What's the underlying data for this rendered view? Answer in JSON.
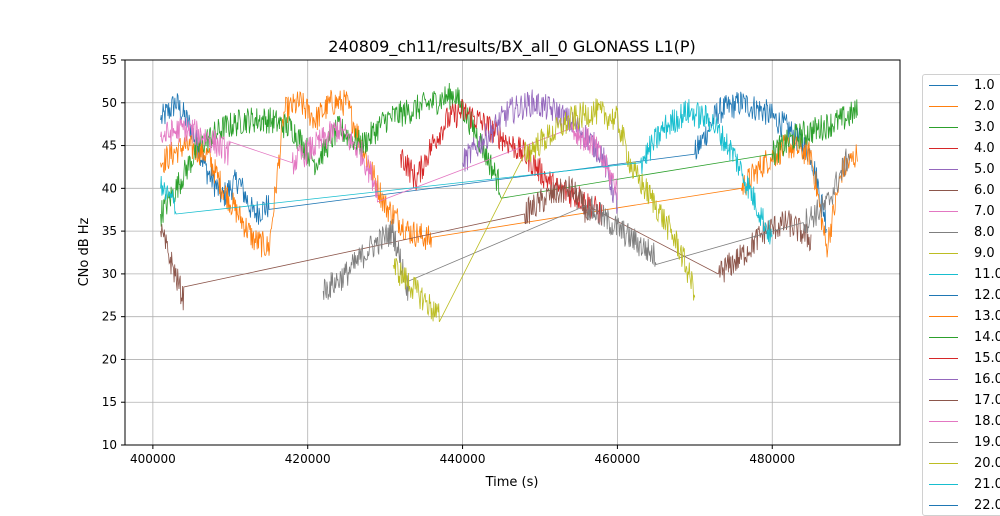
{
  "chart_data": {
    "type": "line",
    "title": "240809_ch11/results/BX_all_0 GLONASS L1(P)",
    "xlabel": "Time (s)",
    "ylabel": "CNo dB Hz",
    "xlim": [
      396400,
      496500
    ],
    "ylim": [
      10,
      55
    ],
    "xticks": [
      400000,
      420000,
      440000,
      460000,
      480000
    ],
    "xtick_labels": [
      "400000",
      "420000",
      "440000",
      "460000",
      "480000"
    ],
    "yticks": [
      10,
      15,
      20,
      25,
      30,
      35,
      40,
      45,
      50,
      55
    ],
    "ytick_labels": [
      "10",
      "15",
      "20",
      "25",
      "30",
      "35",
      "40",
      "45",
      "50",
      "55"
    ],
    "grid": true,
    "legend_position": "right-outside",
    "series": [
      {
        "name": "1.0",
        "color": "#1f77b4",
        "points": [
          [
            401000,
            48
          ],
          [
            403000,
            50
          ],
          [
            405000,
            47
          ],
          [
            407000,
            42
          ],
          [
            409000,
            39
          ],
          [
            411000,
            41
          ],
          [
            413000,
            37
          ],
          [
            415000,
            38
          ],
          [
            470000,
            44
          ],
          [
            473000,
            49
          ],
          [
            476000,
            50
          ],
          [
            479000,
            49
          ],
          [
            482000,
            47
          ],
          [
            485000,
            44
          ],
          [
            487000,
            36
          ]
        ]
      },
      {
        "name": "2.0",
        "color": "#ff7f0e",
        "points": [
          [
            401000,
            43
          ],
          [
            404000,
            45
          ],
          [
            407000,
            44
          ],
          [
            409000,
            40
          ],
          [
            411000,
            37
          ],
          [
            413000,
            34
          ],
          [
            415000,
            33
          ],
          [
            417000,
            49
          ],
          [
            419000,
            50
          ],
          [
            421000,
            48
          ],
          [
            423000,
            50
          ],
          [
            425000,
            50
          ],
          [
            427000,
            45
          ],
          [
            430000,
            38
          ],
          [
            433000,
            35
          ],
          [
            436000,
            34
          ],
          [
            476000,
            40
          ],
          [
            479000,
            43
          ],
          [
            482000,
            45
          ],
          [
            485000,
            44
          ],
          [
            487000,
            33
          ],
          [
            489000,
            42
          ],
          [
            491000,
            44
          ]
        ]
      },
      {
        "name": "3.0",
        "color": "#2ca02c",
        "points": [
          [
            401000,
            37
          ],
          [
            403000,
            40
          ],
          [
            406000,
            45
          ],
          [
            409000,
            47
          ],
          [
            412000,
            48
          ],
          [
            415000,
            48
          ],
          [
            418000,
            47
          ],
          [
            421000,
            43
          ],
          [
            424000,
            47
          ],
          [
            427000,
            45
          ],
          [
            430000,
            48
          ],
          [
            433000,
            49
          ],
          [
            436000,
            50
          ],
          [
            439000,
            51
          ],
          [
            442000,
            46
          ],
          [
            445000,
            40
          ],
          [
            480000,
            44
          ],
          [
            483000,
            46
          ],
          [
            486000,
            47
          ],
          [
            489000,
            48
          ],
          [
            491000,
            49
          ]
        ]
      },
      {
        "name": "4.0",
        "color": "#d62728",
        "points": [
          [
            432000,
            44
          ],
          [
            434000,
            41
          ],
          [
            436000,
            45
          ],
          [
            438000,
            48
          ],
          [
            440000,
            49
          ],
          [
            442000,
            48
          ],
          [
            445000,
            46
          ],
          [
            448000,
            44
          ],
          [
            452000,
            40
          ],
          [
            455000,
            39
          ],
          [
            458000,
            37
          ]
        ]
      },
      {
        "name": "5.0",
        "color": "#9467bd",
        "points": [
          [
            440000,
            43
          ],
          [
            443000,
            46
          ],
          [
            446000,
            49
          ],
          [
            449000,
            50
          ],
          [
            452000,
            49
          ],
          [
            455000,
            47
          ],
          [
            458000,
            44
          ],
          [
            460000,
            38
          ]
        ]
      },
      {
        "name": "6.0",
        "color": "#8c564b",
        "points": [
          [
            401000,
            35
          ],
          [
            402500,
            31
          ],
          [
            404000,
            27
          ],
          [
            448000,
            37
          ],
          [
            451000,
            39
          ],
          [
            454000,
            40
          ],
          [
            457000,
            36
          ],
          [
            473000,
            30
          ],
          [
            476000,
            32
          ],
          [
            479000,
            35
          ],
          [
            482000,
            36
          ],
          [
            485000,
            34
          ]
        ]
      },
      {
        "name": "7.0",
        "color": "#e377c2",
        "points": [
          [
            401000,
            46
          ],
          [
            404000,
            47
          ],
          [
            407000,
            46
          ],
          [
            410000,
            44
          ],
          [
            418000,
            43
          ],
          [
            421000,
            45
          ],
          [
            424000,
            47
          ],
          [
            427000,
            44
          ],
          [
            429000,
            40
          ],
          [
            454000,
            47
          ],
          [
            457000,
            45
          ],
          [
            460000,
            40
          ]
        ]
      },
      {
        "name": "8.0",
        "color": "#7f7f7f",
        "points": [
          [
            422000,
            28
          ],
          [
            425000,
            30
          ],
          [
            428000,
            33
          ],
          [
            431000,
            35
          ],
          [
            433000,
            28
          ],
          [
            456000,
            38
          ],
          [
            459000,
            36
          ],
          [
            462000,
            34
          ],
          [
            465000,
            32
          ],
          [
            484000,
            36
          ],
          [
            487000,
            38
          ],
          [
            490000,
            44
          ]
        ]
      },
      {
        "name": "9.0",
        "color": "#bcbd22",
        "points": [
          [
            431000,
            31
          ],
          [
            433000,
            29
          ],
          [
            435000,
            27
          ],
          [
            437000,
            25
          ],
          [
            448000,
            44
          ],
          [
            451000,
            46
          ],
          [
            454000,
            48
          ],
          [
            457000,
            49
          ],
          [
            460000,
            48
          ],
          [
            462000,
            42
          ],
          [
            465000,
            38
          ],
          [
            468000,
            33
          ],
          [
            470000,
            28
          ]
        ]
      },
      {
        "name": "11.0",
        "color": "#17becf",
        "points": [
          [
            401000,
            40
          ],
          [
            403000,
            38
          ],
          [
            463000,
            43
          ],
          [
            466000,
            47
          ],
          [
            469000,
            49
          ],
          [
            472000,
            48
          ],
          [
            475000,
            44
          ],
          [
            478000,
            38
          ],
          [
            480000,
            34
          ]
        ]
      },
      {
        "name": "12.0",
        "color": "#1f77b4",
        "points": []
      },
      {
        "name": "13.0",
        "color": "#ff7f0e",
        "points": []
      },
      {
        "name": "14.0",
        "color": "#2ca02c",
        "points": []
      },
      {
        "name": "15.0",
        "color": "#d62728",
        "points": []
      },
      {
        "name": "16.0",
        "color": "#9467bd",
        "points": []
      },
      {
        "name": "17.0",
        "color": "#8c564b",
        "points": []
      },
      {
        "name": "18.0",
        "color": "#e377c2",
        "points": []
      },
      {
        "name": "19.0",
        "color": "#7f7f7f",
        "points": []
      },
      {
        "name": "20.0",
        "color": "#bcbd22",
        "points": []
      },
      {
        "name": "21.0",
        "color": "#17becf",
        "points": []
      },
      {
        "name": "22.0",
        "color": "#1f77b4",
        "points": []
      }
    ]
  }
}
